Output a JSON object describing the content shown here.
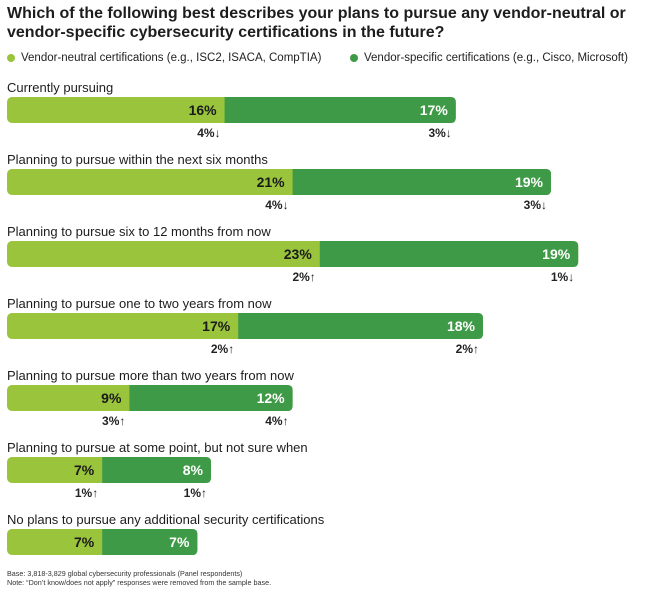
{
  "chart_data": {
    "type": "bar",
    "title": "Which of the following best describes your plans to pursue any vendor-neutral or vendor-specific cybersecurity certifications in the future?",
    "orientation": "horizontal-stacked",
    "xlabel": "",
    "ylabel": "",
    "xlim": [
      0,
      42
    ],
    "colors": {
      "vendor_neutral": "#99c43c",
      "vendor_specific": "#3e9a46"
    },
    "series": [
      {
        "name": "Vendor-neutral certifications (e.g., ISC2, ISACA, CompTIA)"
      },
      {
        "name": "Vendor-specific certifications (e.g., Cisco, Microsoft)"
      }
    ],
    "rows": [
      {
        "category": "Currently pursuing",
        "vendor_neutral": 16,
        "vendor_specific": 17,
        "neutral_label": "16%",
        "specific_label": "17%",
        "neutral_change": "4%",
        "neutral_dir": "down",
        "specific_change": "3%",
        "specific_dir": "down"
      },
      {
        "category": "Planning to pursue within the next six months",
        "vendor_neutral": 21,
        "vendor_specific": 19,
        "neutral_label": "21%",
        "specific_label": "19%",
        "neutral_change": "4%",
        "neutral_dir": "down",
        "specific_change": "3%",
        "specific_dir": "down"
      },
      {
        "category": "Planning to pursue six to 12 months from now",
        "vendor_neutral": 23,
        "vendor_specific": 19,
        "neutral_label": "23%",
        "specific_label": "19%",
        "neutral_change": "2%",
        "neutral_dir": "up",
        "specific_change": "1%",
        "specific_dir": "down"
      },
      {
        "category": "Planning to pursue one to two years from now",
        "vendor_neutral": 17,
        "vendor_specific": 18,
        "neutral_label": "17%",
        "specific_label": "18%",
        "neutral_change": "2%",
        "neutral_dir": "up",
        "specific_change": "2%",
        "specific_dir": "up"
      },
      {
        "category": "Planning to pursue more than two years from now",
        "vendor_neutral": 9,
        "vendor_specific": 12,
        "neutral_label": "9%",
        "specific_label": "12%",
        "neutral_change": "3%",
        "neutral_dir": "up",
        "specific_change": "4%",
        "specific_dir": "up"
      },
      {
        "category": "Planning to pursue at some point, but not sure when",
        "vendor_neutral": 7,
        "vendor_specific": 8,
        "neutral_label": "7%",
        "specific_label": "8%",
        "neutral_change": "1%",
        "neutral_dir": "up",
        "specific_change": "1%",
        "specific_dir": "up"
      },
      {
        "category": "No plans to pursue any additional security certifications",
        "vendor_neutral": 7,
        "vendor_specific": 7,
        "neutral_label": "7%",
        "specific_label": "7%",
        "neutral_change": null,
        "neutral_dir": null,
        "specific_change": null,
        "specific_dir": null
      }
    ],
    "notes": [
      "Base: 3,818-3,829 global cybersecurity professionals (Panel respondents)",
      "Note: “Don’t know/does not apply” responses were removed from the sample base."
    ]
  }
}
